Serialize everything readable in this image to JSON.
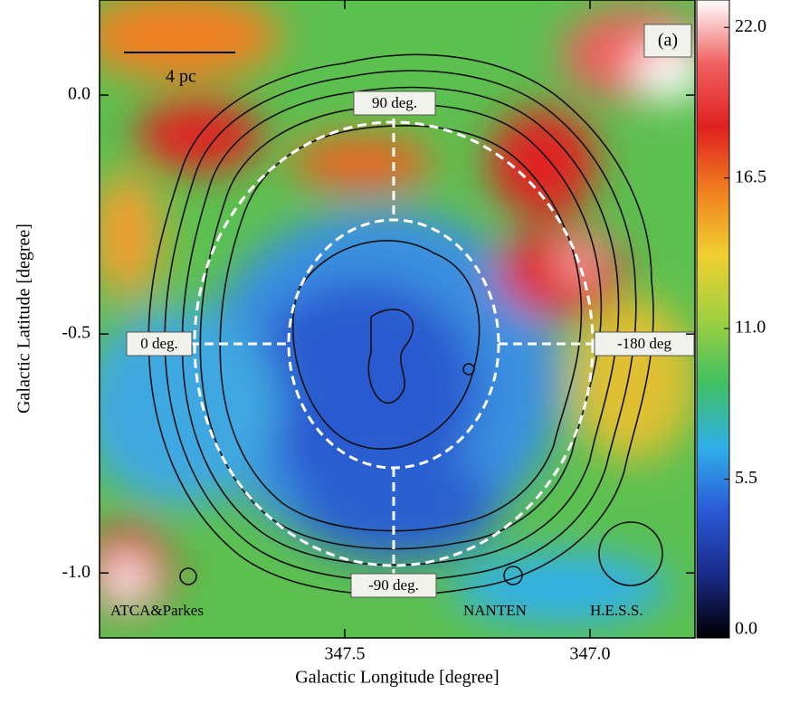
{
  "chart_data": {
    "type": "map",
    "title": "(a)",
    "xlabel": "Galactic Longitude [degree]",
    "ylabel": "Galactic Latitude [degree]",
    "xlim": [
      348.0,
      346.786
    ],
    "ylim": [
      -1.136,
      0.199
    ],
    "xticks": [
      347.5,
      {
        "value": 347,
        "label": "347.0"
      }
    ],
    "yticks": [
      {
        "value": 0,
        "label": "0.0"
      },
      -0.5,
      {
        "value": -1,
        "label": "-1.0"
      }
    ],
    "colorbar": {
      "lim": [
        -0.3,
        23
      ],
      "ticks": [
        {
          "value": 22,
          "label": "22.0"
        },
        16.5,
        {
          "value": 11,
          "label": "11.0"
        },
        5.5,
        {
          "value": 0,
          "label": "0.0"
        }
      ],
      "colors": [
        "#000000",
        "#1a2a8a",
        "#2a5ad8",
        "#30b0e8",
        "#40c060",
        "#a0d040",
        "#f0d030",
        "#f08020",
        "#e02020",
        "#f06060",
        "#ffffff"
      ]
    },
    "annotations": {
      "scale_bar": "4 pc",
      "angles": [
        "90 deg.",
        "0 deg.",
        "-180 deg",
        "-90 deg."
      ],
      "instruments": [
        "ATCA&Parkes",
        "NANTEN",
        "H.E.S.S."
      ]
    }
  }
}
